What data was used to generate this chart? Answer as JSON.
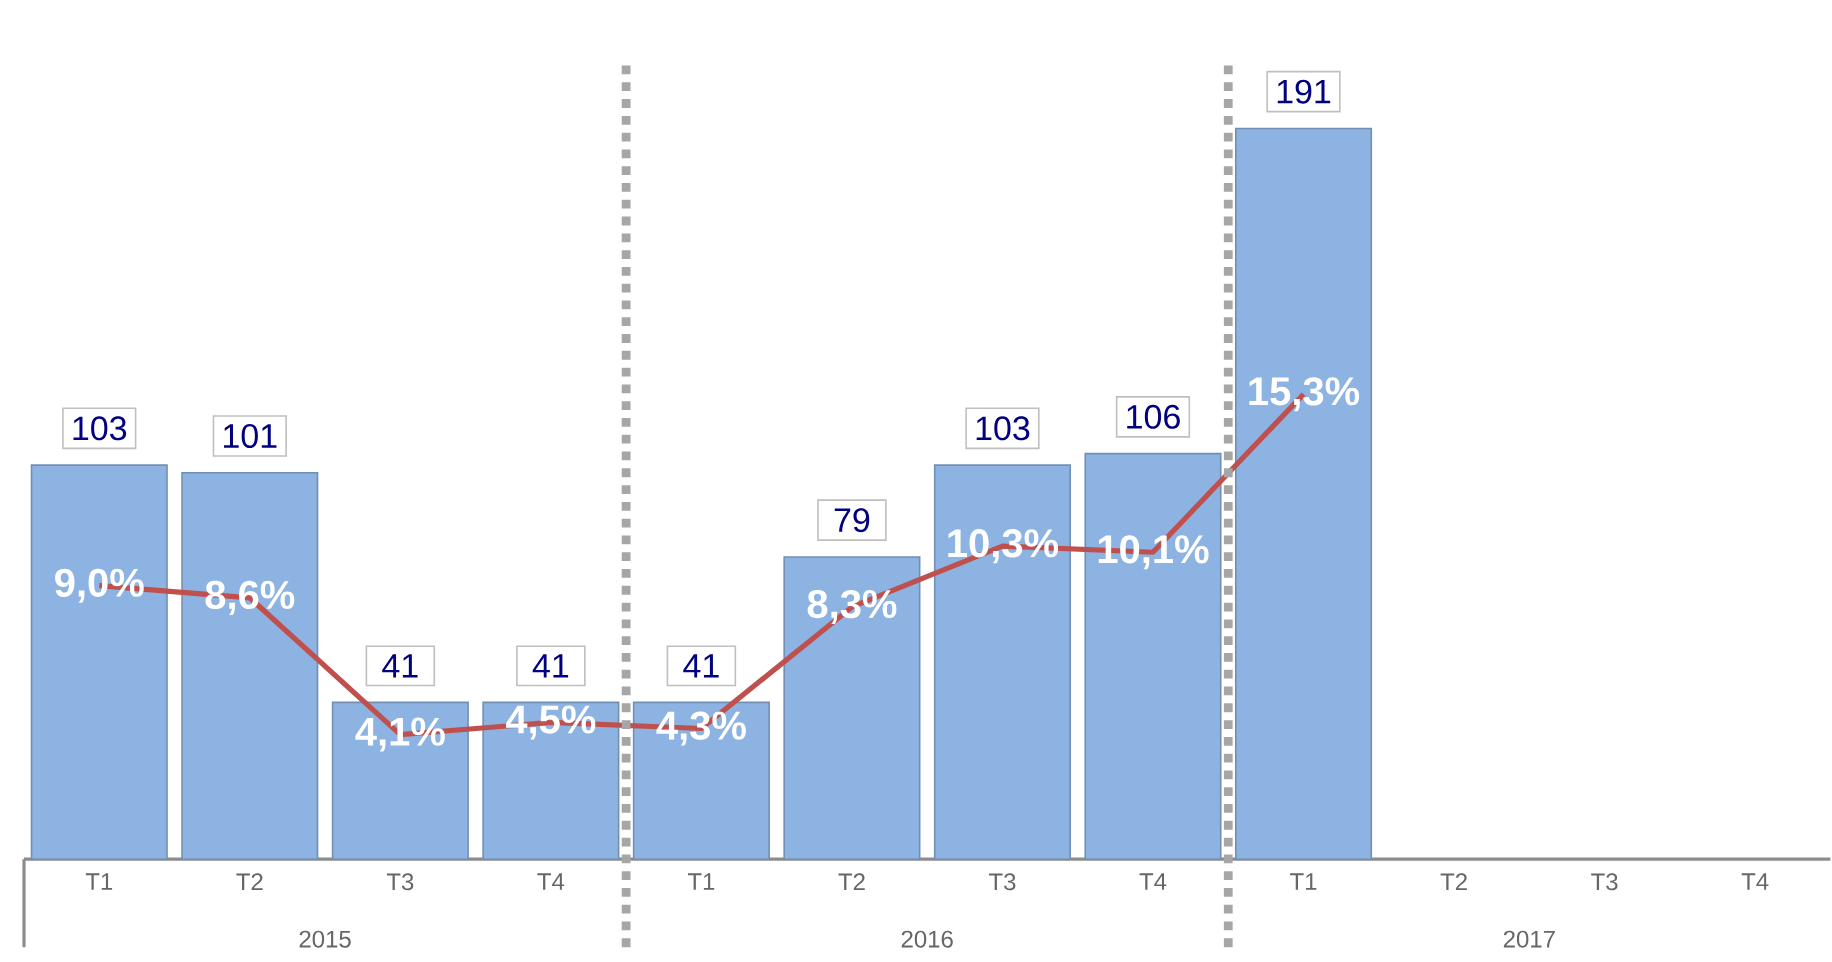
{
  "chart_data": {
    "type": "bar",
    "categories": [
      "T1",
      "T2",
      "T3",
      "T4",
      "T1",
      "T2",
      "T3",
      "T4",
      "T1",
      "T2",
      "T3",
      "T4"
    ],
    "series": [
      {
        "color": "#8db3e2",
        "values": [
          103,
          101,
          41,
          41,
          41,
          79,
          103,
          106,
          191,
          null,
          null,
          null
        ],
        "value_labels": [
          "103",
          "101",
          "41",
          "41",
          "41",
          "79",
          "103",
          "106",
          "191",
          null,
          null,
          null
        ]
      },
      {
        "type": "line",
        "axis": "y2",
        "color": "#c0504d",
        "values": [
          9.0,
          8.6,
          4.1,
          4.5,
          4.3,
          8.3,
          10.3,
          10.1,
          15.3,
          null,
          null,
          null
        ],
        "value_labels": [
          "9,0%",
          "8,6%",
          "4,1%",
          "4,5%",
          "4,3%",
          "8,3%",
          "10,3%",
          "10,1%",
          "15,3%",
          null,
          null,
          null
        ]
      }
    ],
    "tick_labels": "x",
    "marker": "none",
    "line_style": "solid",
    "annotations": [
      "2015",
      "2016",
      "2017"
    ]
  }
}
